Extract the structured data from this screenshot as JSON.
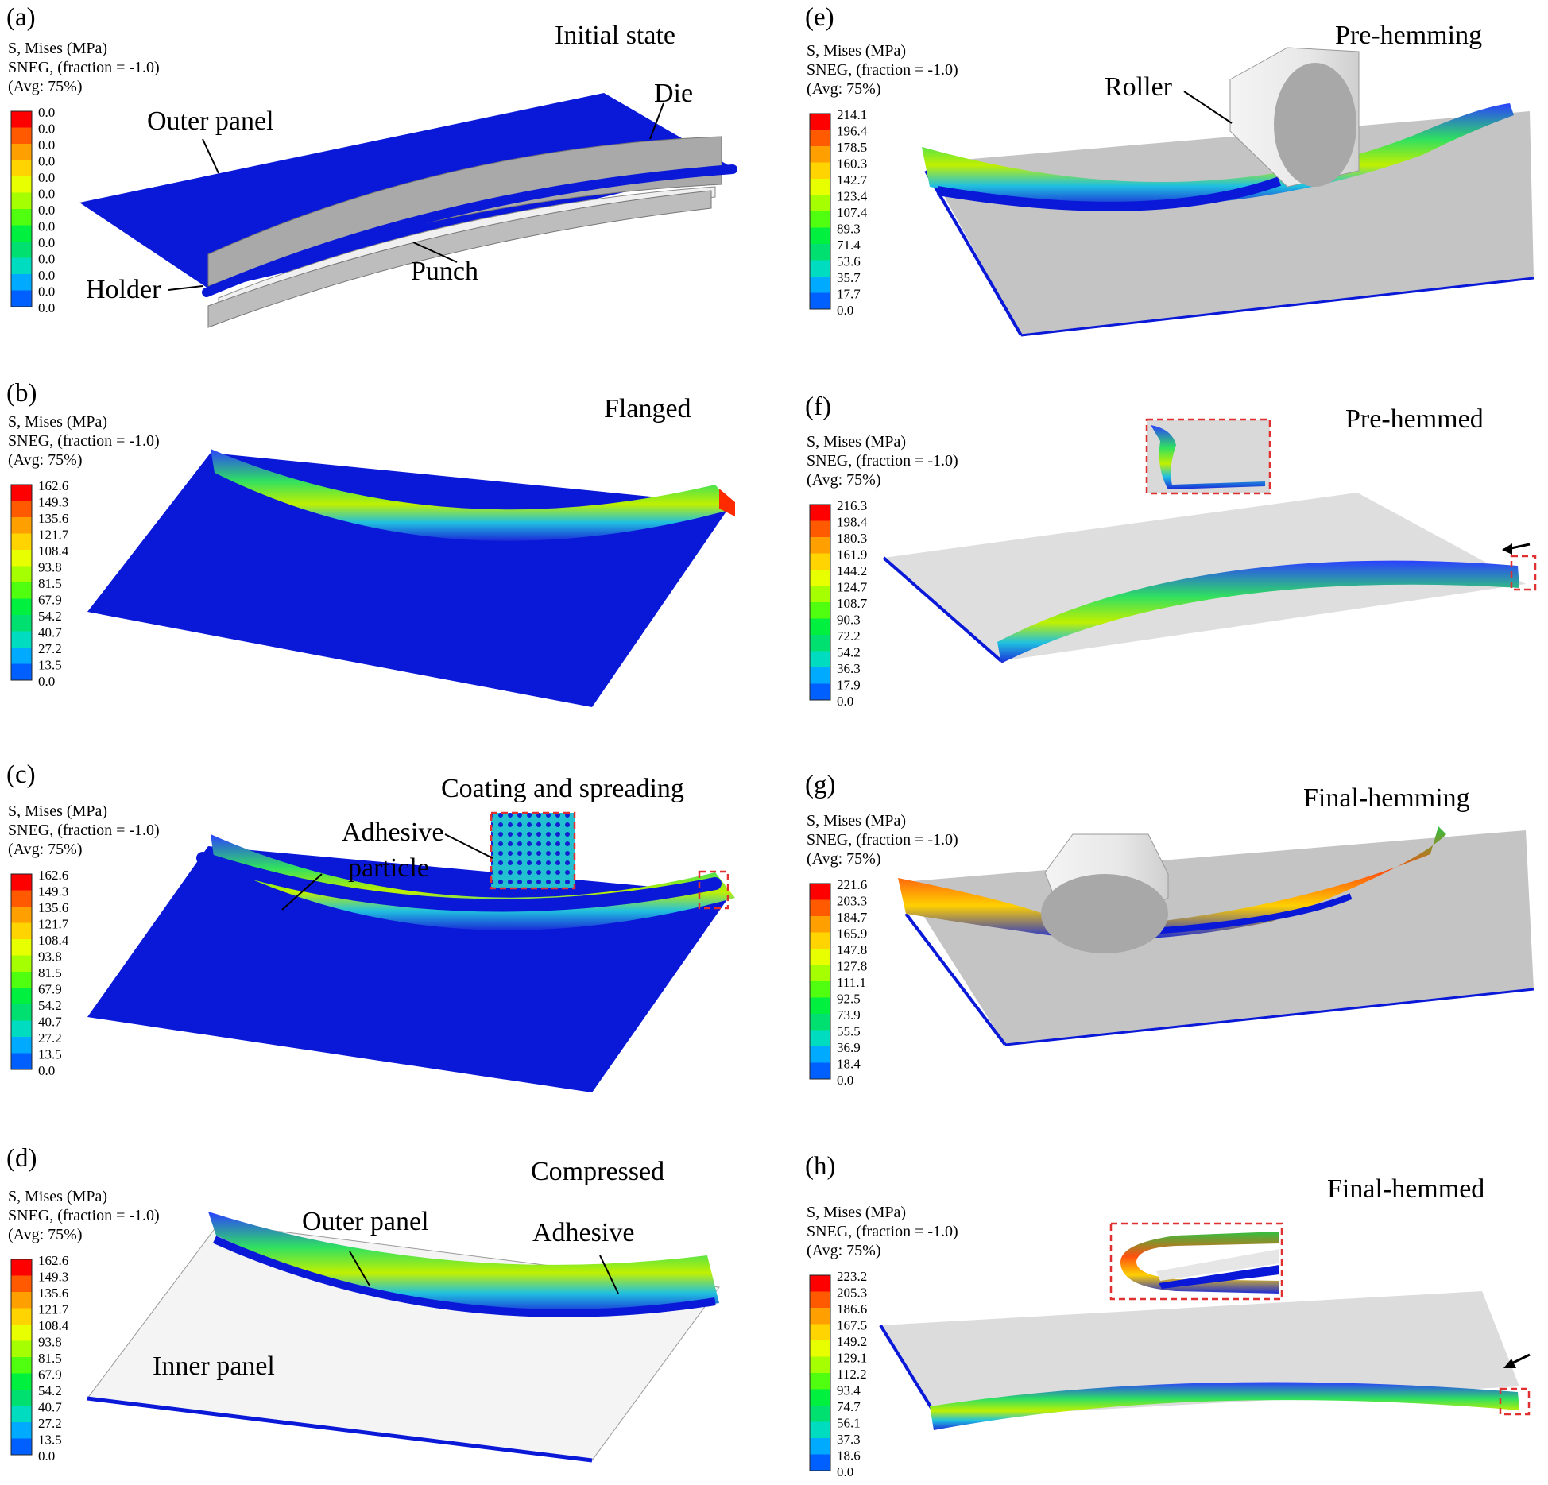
{
  "colors": {
    "blue": "#0a18d8",
    "gray": "#c4c4c4",
    "lightgray": "#e0e0e0",
    "inner_panel": "#f2f2f2",
    "dashed_box": "#e03030"
  },
  "legend_scale": [
    "#ff0000",
    "#ff5a00",
    "#ffa000",
    "#ffd400",
    "#e8ff00",
    "#a6ff00",
    "#50ff10",
    "#00f040",
    "#00e070",
    "#00dcc0",
    "#00aaff",
    "#0060ff",
    "#0000ff"
  ],
  "legend_header": [
    "S, Mises (MPa)",
    "SNEG, (fraction = -1.0)",
    "(Avg: 75%)"
  ],
  "panels": [
    {
      "id": "a",
      "tag": "(a)",
      "title": "Initial state",
      "legend_values": [
        "0.0",
        "0.0",
        "0.0",
        "0.0",
        "0.0",
        "0.0",
        "0.0",
        "0.0",
        "0.0",
        "0.0",
        "0.0",
        "0.0",
        "0.0"
      ],
      "labels": [
        "Outer panel",
        "Die",
        "Holder",
        "Punch"
      ]
    },
    {
      "id": "b",
      "tag": "(b)",
      "title": "Flanged",
      "legend_values": [
        "162.6",
        "149.3",
        "135.6",
        "121.7",
        "108.4",
        "93.8",
        "81.5",
        "67.9",
        "54.2",
        "40.7",
        "27.2",
        "13.5",
        "0.0"
      ],
      "labels": []
    },
    {
      "id": "c",
      "tag": "(c)",
      "title": "Coating and spreading",
      "legend_values": [
        "162.6",
        "149.3",
        "135.6",
        "121.7",
        "108.4",
        "93.8",
        "81.5",
        "67.9",
        "54.2",
        "40.7",
        "27.2",
        "13.5",
        "0.0"
      ],
      "labels": [
        "Adhesive",
        "particle"
      ]
    },
    {
      "id": "d",
      "tag": "(d)",
      "title": "Compressed",
      "legend_values": [
        "162.6",
        "149.3",
        "135.6",
        "121.7",
        "108.4",
        "93.8",
        "81.5",
        "67.9",
        "54.2",
        "40.7",
        "27.2",
        "13.5",
        "0.0"
      ],
      "labels": [
        "Outer panel",
        "Adhesive",
        "Inner panel"
      ]
    },
    {
      "id": "e",
      "tag": "(e)",
      "title": "Pre-hemming",
      "legend_values": [
        "214.1",
        "196.4",
        "178.5",
        "160.3",
        "142.7",
        "123.4",
        "107.4",
        "89.3",
        "71.4",
        "53.6",
        "35.7",
        "17.7",
        "0.0"
      ],
      "labels": [
        "Roller"
      ]
    },
    {
      "id": "f",
      "tag": "(f)",
      "title": "Pre-hemmed",
      "legend_values": [
        "216.3",
        "198.4",
        "180.3",
        "161.9",
        "144.2",
        "124.7",
        "108.7",
        "90.3",
        "72.2",
        "54.2",
        "36.3",
        "17.9",
        "0.0"
      ],
      "labels": []
    },
    {
      "id": "g",
      "tag": "(g)",
      "title": "Final-hemming",
      "legend_values": [
        "221.6",
        "203.3",
        "184.7",
        "165.9",
        "147.8",
        "127.8",
        "111.1",
        "92.5",
        "73.9",
        "55.5",
        "36.9",
        "18.4",
        "0.0"
      ],
      "labels": []
    },
    {
      "id": "h",
      "tag": "(h)",
      "title": "Final-hemmed",
      "legend_values": [
        "223.2",
        "205.3",
        "186.6",
        "167.5",
        "149.2",
        "129.1",
        "112.2",
        "93.4",
        "74.7",
        "56.1",
        "37.3",
        "18.6",
        "0.0"
      ],
      "labels": []
    }
  ]
}
